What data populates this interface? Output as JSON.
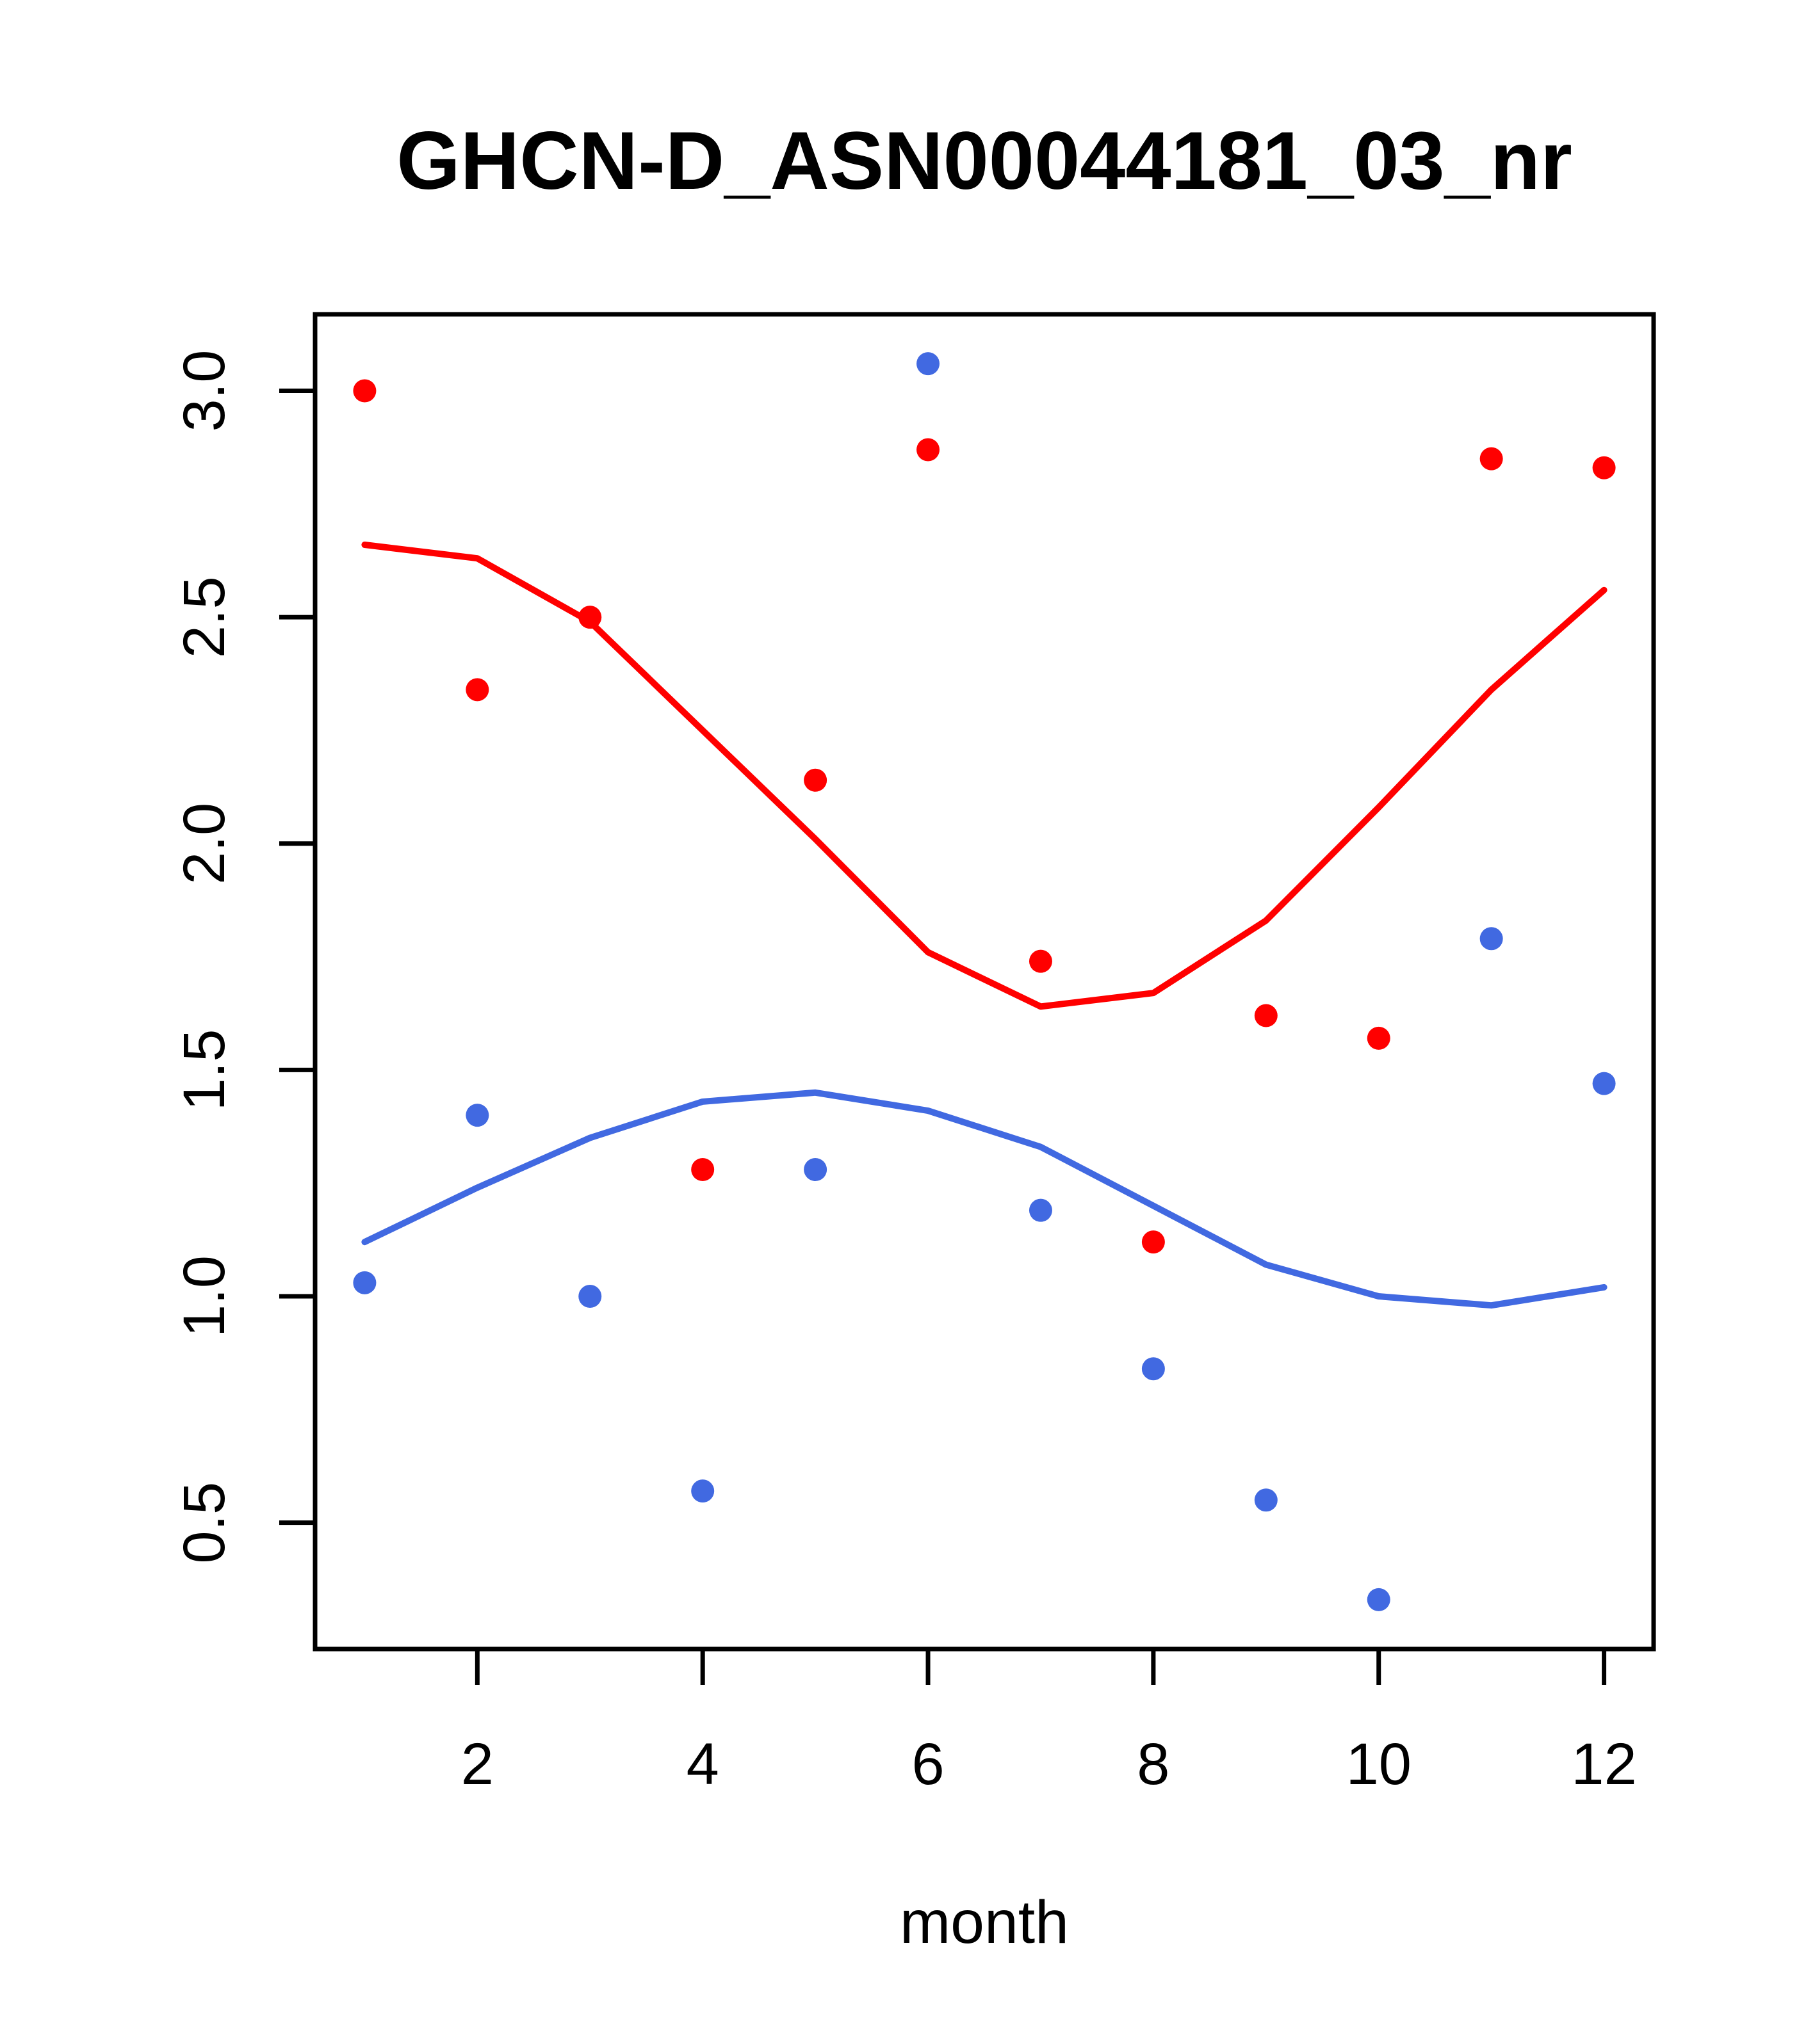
{
  "chart_data": {
    "type": "scatter",
    "title": "GHCN-D_ASN00044181_03_nr",
    "xlabel": "month",
    "ylabel": "",
    "x_tick_labels": [
      "2",
      "4",
      "6",
      "8",
      "10",
      "12"
    ],
    "y_tick_labels": [
      "0.5",
      "1.0",
      "1.5",
      "2.0",
      "2.5",
      "3.0"
    ],
    "xlim": [
      0.56,
      12.44
    ],
    "ylim": [
      0.221,
      3.169
    ],
    "grid": false,
    "legend": null,
    "months": [
      1,
      2,
      3,
      4,
      5,
      6,
      7,
      8,
      9,
      10,
      11,
      12
    ],
    "colors": {
      "red": "#FF0000",
      "blue": "#4169E1"
    },
    "series": [
      {
        "name": "red-points",
        "type": "points",
        "color": "#FF0000",
        "values": [
          3.0,
          2.34,
          2.5,
          1.28,
          2.14,
          2.87,
          1.74,
          1.12,
          1.62,
          1.57,
          2.85,
          2.83
        ]
      },
      {
        "name": "blue-points",
        "type": "points",
        "color": "#4169E1",
        "values": [
          1.03,
          1.4,
          1.0,
          0.57,
          1.28,
          3.06,
          1.19,
          0.84,
          0.55,
          0.33,
          1.79,
          1.47
        ]
      },
      {
        "name": "red-smooth-line",
        "type": "line",
        "color": "#FF0000",
        "values": [
          2.66,
          2.63,
          2.49,
          2.25,
          2.01,
          1.76,
          1.64,
          1.67,
          1.83,
          2.08,
          2.34,
          2.56
        ]
      },
      {
        "name": "blue-smooth-line",
        "type": "line",
        "color": "#4169E1",
        "values": [
          1.12,
          1.24,
          1.35,
          1.43,
          1.45,
          1.41,
          1.33,
          1.2,
          1.07,
          1.0,
          0.98,
          1.02
        ]
      }
    ]
  }
}
